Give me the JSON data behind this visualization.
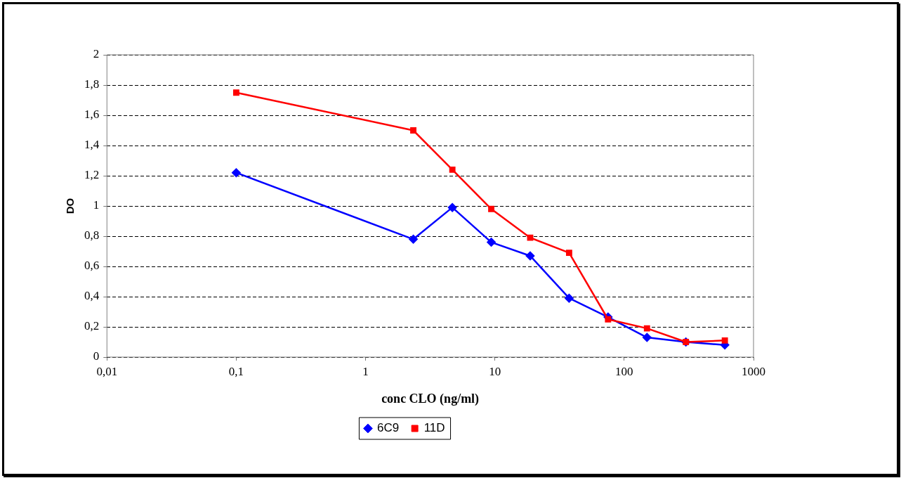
{
  "chart_data": {
    "type": "line",
    "xlabel": "conc CLO (ng/ml)",
    "ylabel": "DO",
    "x": [
      0.1,
      2.34,
      4.69,
      9.375,
      18.75,
      37.5,
      75,
      150,
      300,
      600
    ],
    "series": [
      {
        "name": "6C9",
        "color": "#0000ff",
        "marker": "diamond",
        "values": [
          1.22,
          0.78,
          0.99,
          0.76,
          0.67,
          0.39,
          0.265,
          0.13,
          0.1,
          0.08
        ]
      },
      {
        "name": "11D",
        "color": "#ff0000",
        "marker": "square",
        "values": [
          1.75,
          1.5,
          1.24,
          0.98,
          0.79,
          0.69,
          0.25,
          0.19,
          0.1,
          0.11
        ]
      }
    ],
    "log": "x",
    "xlim": [
      0.01,
      1000
    ],
    "xticks": [
      {
        "value": 0.01,
        "label": "0,01"
      },
      {
        "value": 0.1,
        "label": "0,1"
      },
      1,
      10,
      100,
      1000
    ],
    "ylim": [
      0,
      2
    ],
    "yticks": [
      0,
      {
        "value": 0.2,
        "label": "0,2"
      },
      {
        "value": 0.4,
        "label": "0,4"
      },
      {
        "value": 0.6,
        "label": "0,6"
      },
      {
        "value": 0.8,
        "label": "0,8"
      },
      1,
      {
        "value": 1.2,
        "label": "1,2"
      },
      {
        "value": 1.4,
        "label": "1,4"
      },
      {
        "value": 1.6,
        "label": "1,6"
      },
      {
        "value": 1.8,
        "label": "1,8"
      },
      2
    ],
    "grid": "y",
    "legend": "bottom",
    "line_style": "solid"
  }
}
